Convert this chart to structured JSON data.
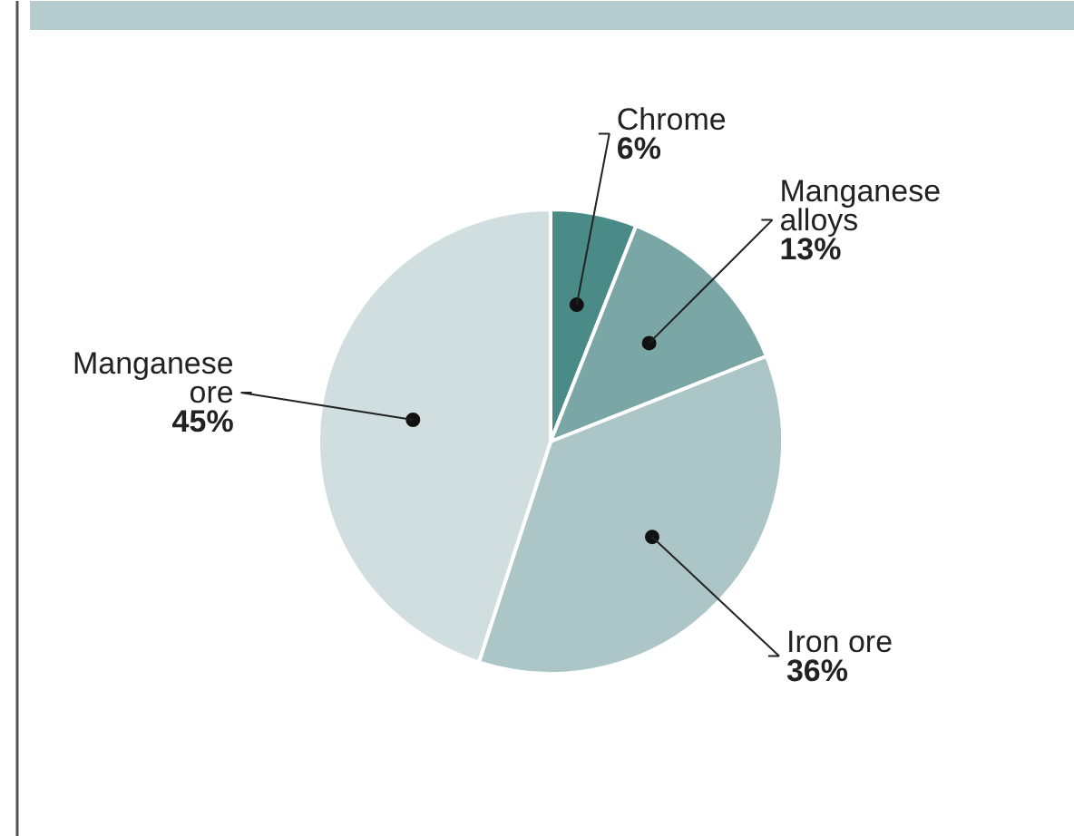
{
  "chart_data": {
    "type": "pie",
    "categories": [
      "Chrome",
      "Manganese alloys",
      "Iron ore",
      "Manganese ore"
    ],
    "values": [
      6,
      13,
      36,
      45
    ],
    "value_labels": [
      "6%",
      "13%",
      "36%",
      "45%"
    ],
    "colors": [
      "#4a8a87",
      "#7aa6a6",
      "#acc5c6",
      "#d0dedf"
    ]
  }
}
